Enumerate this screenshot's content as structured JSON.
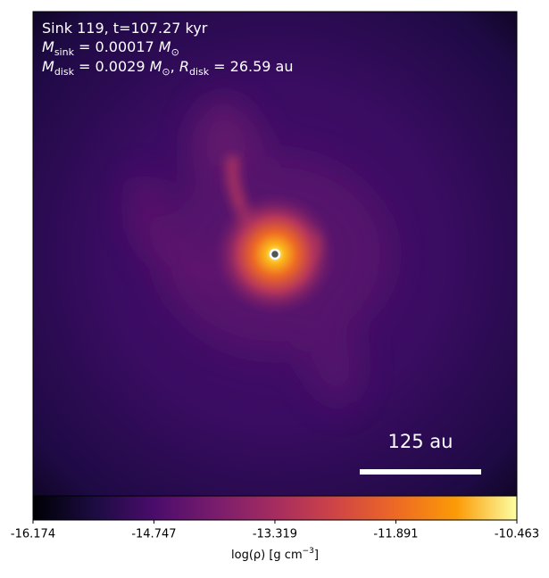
{
  "chart_data": {
    "type": "heatmap",
    "annotation_lines": [
      [
        "Sink 119, t=107.27 kyr"
      ],
      [
        "M",
        "sink",
        " = 0.00017 ",
        "M",
        "⊙"
      ],
      [
        "M",
        "disk",
        " = 0.0029 ",
        "M",
        "⊙",
        ", ",
        "R",
        "disk",
        " = 26.59 au"
      ]
    ],
    "scale_bar_label": "125 au",
    "colorbar": {
      "label": [
        "log(ρ) [g cm",
        "−3",
        "]"
      ],
      "lim": [
        -16.174,
        -10.463
      ],
      "ticks": [
        -16.174,
        -14.747,
        -13.319,
        -11.891,
        -10.463
      ],
      "colormap": [
        "#000004",
        "#1b0c41",
        "#4a0c6b",
        "#781c6d",
        "#a52c60",
        "#cf4446",
        "#ed6925",
        "#fb9b06",
        "#fcffa4"
      ]
    }
  }
}
